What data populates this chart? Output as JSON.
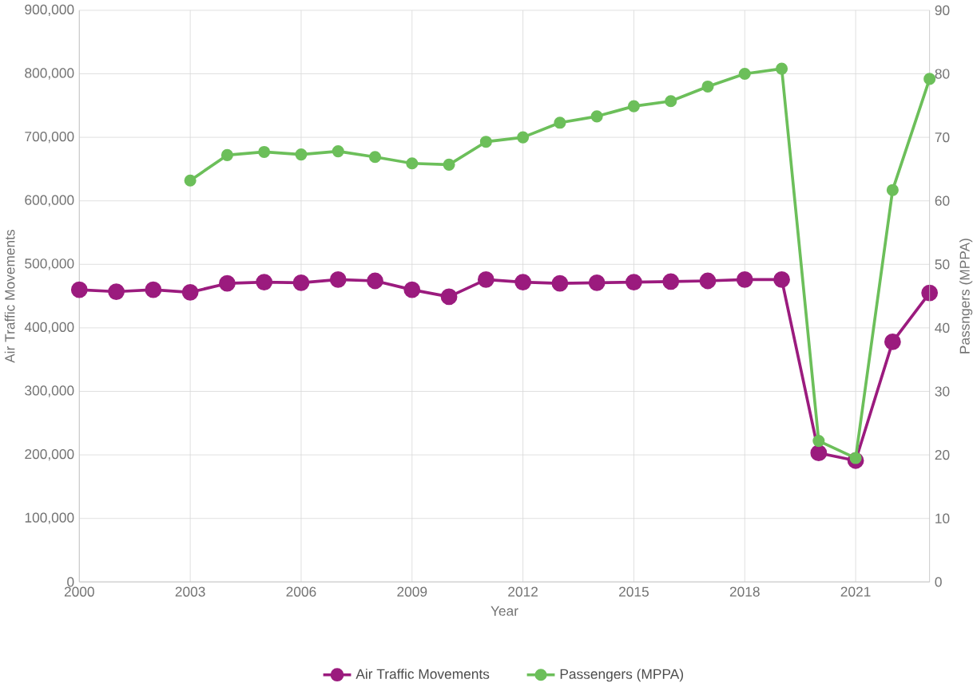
{
  "chart_data": {
    "type": "line",
    "xlabel": "Year",
    "ylabel": "Air Traffic Movements",
    "y2label": "Passngers (MPPA)",
    "x": [
      2000,
      2001,
      2002,
      2003,
      2004,
      2005,
      2006,
      2007,
      2008,
      2009,
      2010,
      2011,
      2012,
      2013,
      2014,
      2015,
      2016,
      2017,
      2018,
      2019,
      2020,
      2021,
      2022,
      2023
    ],
    "series": [
      {
        "name": "Air Traffic Movements",
        "color": "#9b1b7e",
        "values": [
          460000,
          457000,
          460000,
          456000,
          470000,
          472000,
          471000,
          476000,
          474000,
          460000,
          449000,
          476000,
          472000,
          470000,
          471000,
          472000,
          473000,
          474000,
          476000,
          476000,
          203000,
          191000,
          378000,
          455000
        ]
      },
      {
        "name": "Passengers (MPPA)",
        "color": "#6cbf5a",
        "axis": "y2",
        "values": [
          null,
          null,
          null,
          63.2,
          67.2,
          67.7,
          67.3,
          67.8,
          66.9,
          65.9,
          65.7,
          69.3,
          70.0,
          72.3,
          73.3,
          74.9,
          75.7,
          78.0,
          80.0,
          80.8,
          22.2,
          19.5,
          61.7,
          79.2
        ]
      }
    ],
    "xlim": [
      2000,
      2023
    ],
    "xticks": [
      2000,
      2003,
      2006,
      2009,
      2012,
      2015,
      2018,
      2021
    ],
    "ylim": [
      0,
      900000
    ],
    "yticks": [
      {
        "value": 0,
        "label": "0"
      },
      {
        "value": 100000,
        "label": "100,000"
      },
      {
        "value": 200000,
        "label": "200,000"
      },
      {
        "value": 300000,
        "label": "300,000"
      },
      {
        "value": 400000,
        "label": "400,000"
      },
      {
        "value": 500000,
        "label": "500,000"
      },
      {
        "value": 600000,
        "label": "600,000"
      },
      {
        "value": 700000,
        "label": "700,000"
      },
      {
        "value": 800000,
        "label": "800,000"
      },
      {
        "value": 900000,
        "label": "900,000"
      }
    ],
    "y2lim": [
      0,
      90
    ],
    "y2ticks": [
      0,
      10,
      20,
      30,
      40,
      50,
      60,
      70,
      80,
      90
    ],
    "grid": true,
    "legend": "bottom",
    "marker": "circle",
    "line_style": "solid"
  }
}
